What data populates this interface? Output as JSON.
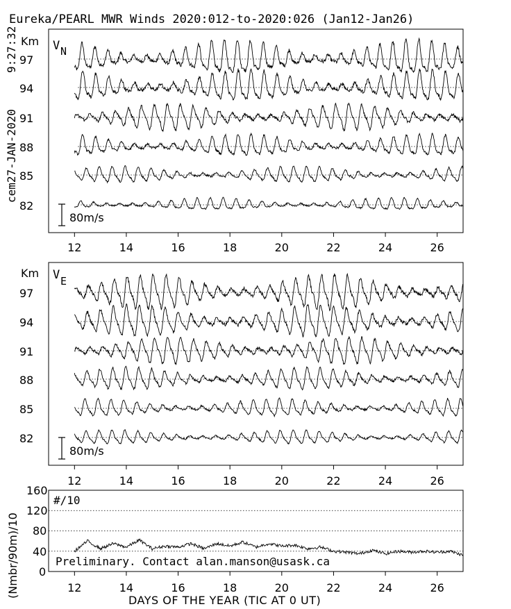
{
  "title": "Eureka/PEARL MWR Winds 2020:012-to-2020:026 (Jan12-Jan26)",
  "timestamp": "9:27:32",
  "side_label": "cem27-JAN-2020",
  "chart_data": [
    {
      "type": "line",
      "panel": "north",
      "component_label": "V",
      "component_sub": "N",
      "unit_label": "Km",
      "heights_km": [
        "97",
        "94",
        "91",
        "88",
        "85",
        "82"
      ],
      "x_ticks": [
        "12",
        "14",
        "16",
        "18",
        "20",
        "22",
        "24",
        "26"
      ],
      "xlim": [
        11,
        27
      ],
      "scale_bar_label": "80m/s",
      "scale_bar_value": 80,
      "period_days": 0.5,
      "series": [
        {
          "height_km": 97,
          "amplitude_ms": 55,
          "start_day": 12.0
        },
        {
          "height_km": 94,
          "amplitude_ms": 50,
          "start_day": 12.0
        },
        {
          "height_km": 91,
          "amplitude_ms": 42,
          "start_day": 12.0
        },
        {
          "height_km": 88,
          "amplitude_ms": 35,
          "start_day": 12.0
        },
        {
          "height_km": 85,
          "amplitude_ms": 26,
          "start_day": 12.0
        },
        {
          "height_km": 82,
          "amplitude_ms": 20,
          "start_day": 12.0
        }
      ]
    },
    {
      "type": "line",
      "panel": "east",
      "component_label": "V",
      "component_sub": "E",
      "unit_label": "Km",
      "heights_km": [
        "97",
        "94",
        "91",
        "88",
        "85",
        "82"
      ],
      "x_ticks": [
        "12",
        "14",
        "16",
        "18",
        "20",
        "22",
        "24",
        "26"
      ],
      "xlim": [
        11,
        27
      ],
      "scale_bar_label": "80m/s",
      "scale_bar_value": 80,
      "period_days": 0.5,
      "series": [
        {
          "height_km": 97,
          "amplitude_ms": 55,
          "start_day": 12.0
        },
        {
          "height_km": 94,
          "amplitude_ms": 50,
          "start_day": 12.0
        },
        {
          "height_km": 91,
          "amplitude_ms": 42,
          "start_day": 12.0
        },
        {
          "height_km": 88,
          "amplitude_ms": 35,
          "start_day": 12.0
        },
        {
          "height_km": 85,
          "amplitude_ms": 28,
          "start_day": 12.0
        },
        {
          "height_km": 82,
          "amplitude_ms": 22,
          "start_day": 12.0
        }
      ]
    },
    {
      "type": "line",
      "panel": "counts",
      "ylabel": "(Nmbr/90m)/10",
      "inner_label": "#/10",
      "y_ticks": [
        "160",
        "120",
        "80",
        "40",
        "0"
      ],
      "ylim": [
        0,
        160
      ],
      "x_ticks": [
        "12",
        "14",
        "16",
        "18",
        "20",
        "22",
        "24",
        "26"
      ],
      "xlim": [
        11,
        27
      ],
      "xlabel": "DAYS OF THE YEAR (TIC AT 0 UT)",
      "note": "Preliminary. Contact alan.manson@usask.ca",
      "series": [
        {
          "x": [
            12.0,
            12.5,
            13.0,
            13.5,
            14.0,
            14.5,
            15.0,
            15.5,
            16.0,
            16.5,
            17.0,
            17.5,
            18.0,
            18.5,
            19.0,
            19.5,
            20.0,
            20.5,
            21.0,
            21.5,
            22.0,
            22.5,
            23.0,
            23.5,
            24.0,
            24.5,
            25.0,
            25.5,
            26.0,
            26.5,
            27.0
          ],
          "y": [
            40,
            60,
            45,
            55,
            48,
            62,
            45,
            50,
            48,
            55,
            45,
            55,
            50,
            58,
            48,
            55,
            50,
            52,
            45,
            48,
            40,
            38,
            35,
            42,
            35,
            40,
            38,
            40,
            38,
            40,
            32
          ]
        }
      ]
    }
  ]
}
